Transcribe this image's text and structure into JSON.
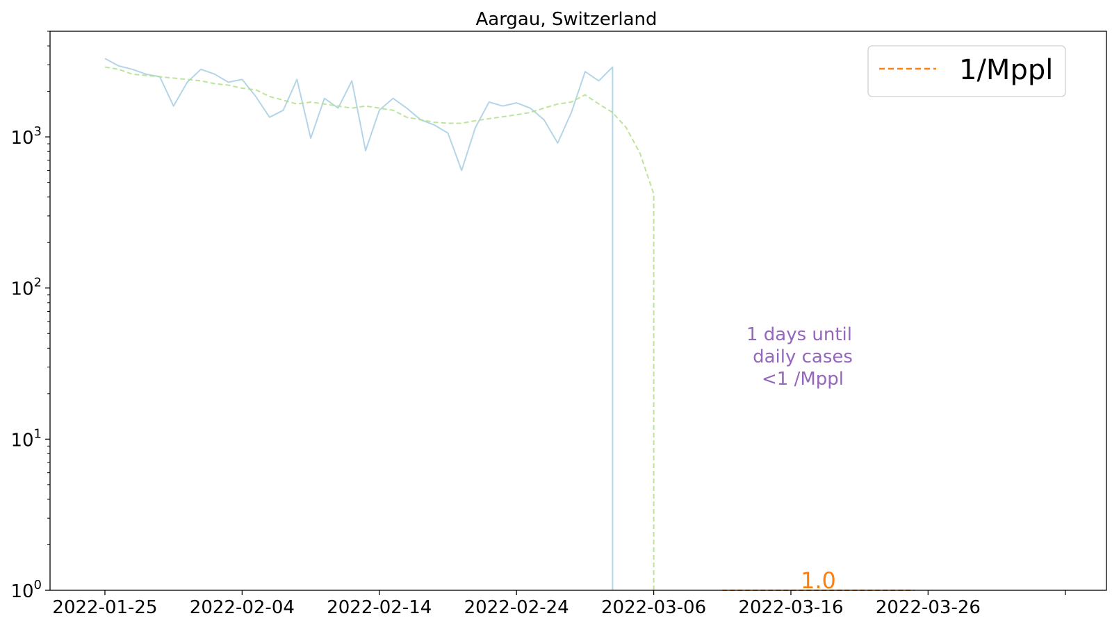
{
  "chart_data": {
    "type": "line",
    "title": "Aargau, Switzerland",
    "xlabel": "",
    "ylabel": "",
    "y_scale": "log",
    "ylim": [
      1,
      5000
    ],
    "xlim": [
      "2022-01-21",
      "2022-04-08"
    ],
    "grid": false,
    "legend_position": "top-right",
    "x_ticks": [
      "2022-01-25",
      "2022-02-04",
      "2022-02-14",
      "2022-02-24",
      "2022-03-06",
      "2022-03-16",
      "2022-03-26",
      "2022-04-05"
    ],
    "x_tick_labels": [
      "2022-01-25",
      "2022-02-04",
      "2022-02-14",
      "2022-02-24",
      "2022-03-06",
      "2022-03-16",
      "2022-03-26",
      ""
    ],
    "y_ticks": [
      1,
      10,
      100,
      1000
    ],
    "y_tick_labels": [
      {
        "base": "10",
        "exp": "0"
      },
      {
        "base": "10",
        "exp": "1"
      },
      {
        "base": "10",
        "exp": "2"
      },
      {
        "base": "10",
        "exp": "3"
      }
    ],
    "series": [
      {
        "style": "solid",
        "color": "#a6cee3",
        "x": [
          "2022-01-25",
          "2022-01-26",
          "2022-01-27",
          "2022-01-28",
          "2022-01-29",
          "2022-01-30",
          "2022-01-31",
          "2022-02-01",
          "2022-02-02",
          "2022-02-03",
          "2022-02-04",
          "2022-02-05",
          "2022-02-06",
          "2022-02-07",
          "2022-02-08",
          "2022-02-09",
          "2022-02-10",
          "2022-02-11",
          "2022-02-12",
          "2022-02-13",
          "2022-02-14",
          "2022-02-15",
          "2022-02-16",
          "2022-02-17",
          "2022-02-18",
          "2022-02-19",
          "2022-02-20",
          "2022-02-21",
          "2022-02-22",
          "2022-02-23",
          "2022-02-24",
          "2022-02-25",
          "2022-02-26",
          "2022-02-27",
          "2022-02-28",
          "2022-03-01",
          "2022-03-02",
          "2022-03-03",
          "2022-03-03"
        ],
        "y": [
          3300,
          2950,
          2800,
          2600,
          2500,
          1600,
          2300,
          2800,
          2600,
          2300,
          2400,
          1850,
          1350,
          1500,
          2400,
          980,
          1800,
          1550,
          2350,
          810,
          1500,
          1800,
          1550,
          1300,
          1200,
          1060,
          600,
          1150,
          1700,
          1600,
          1680,
          1550,
          1300,
          910,
          1450,
          2700,
          2350,
          2900,
          1
        ]
      },
      {
        "style": "dashed",
        "color": "#b2df8a",
        "x": [
          "2022-01-25",
          "2022-01-26",
          "2022-01-27",
          "2022-01-28",
          "2022-01-29",
          "2022-01-30",
          "2022-01-31",
          "2022-02-01",
          "2022-02-02",
          "2022-02-03",
          "2022-02-04",
          "2022-02-05",
          "2022-02-06",
          "2022-02-07",
          "2022-02-08",
          "2022-02-09",
          "2022-02-10",
          "2022-02-11",
          "2022-02-12",
          "2022-02-13",
          "2022-02-14",
          "2022-02-15",
          "2022-02-16",
          "2022-02-17",
          "2022-02-18",
          "2022-02-19",
          "2022-02-20",
          "2022-02-21",
          "2022-02-22",
          "2022-02-23",
          "2022-02-24",
          "2022-02-25",
          "2022-02-26",
          "2022-02-27",
          "2022-02-28",
          "2022-03-01",
          "2022-03-02",
          "2022-03-03",
          "2022-03-04",
          "2022-03-05",
          "2022-03-06",
          "2022-03-06"
        ],
        "y": [
          2900,
          2800,
          2600,
          2550,
          2500,
          2450,
          2400,
          2350,
          2250,
          2200,
          2100,
          2050,
          1850,
          1750,
          1650,
          1700,
          1650,
          1600,
          1550,
          1600,
          1550,
          1500,
          1350,
          1300,
          1250,
          1230,
          1230,
          1280,
          1320,
          1360,
          1400,
          1450,
          1550,
          1650,
          1700,
          1900,
          1650,
          1450,
          1150,
          780,
          420,
          1
        ]
      },
      {
        "name": "1/Mppl",
        "style": "dashed",
        "color": "#ff7f0e",
        "x": [
          "2022-03-11",
          "2022-03-25"
        ],
        "y": [
          1,
          1
        ]
      }
    ],
    "annotations": [
      {
        "lines": [
          "1 days until",
          "daily cases",
          "<1 /Mppl"
        ],
        "color": "#9467bd",
        "x": "2022-03-17",
        "y": 30
      },
      {
        "text": "1.0",
        "color": "#ff7f0e",
        "x": "2022-03-18",
        "y": 1
      }
    ]
  }
}
